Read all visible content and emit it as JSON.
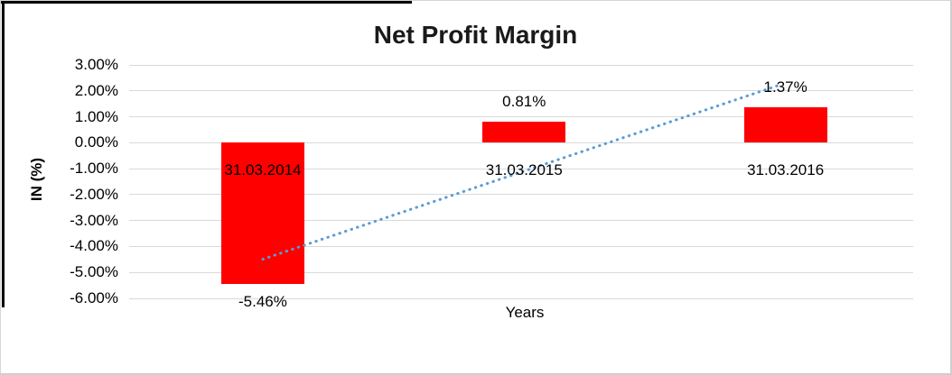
{
  "chart_data": {
    "type": "bar",
    "title": "Net Profit Margin",
    "xlabel": "Years",
    "ylabel": "IN (%)",
    "categories": [
      "31.03.2014",
      "31.03.2015",
      "31.03.2016"
    ],
    "series": [
      {
        "name": "Net Profit Margin",
        "values": [
          -5.46,
          0.81,
          1.37
        ]
      }
    ],
    "data_labels": [
      "-5.46%",
      "0.81%",
      "1.37%"
    ],
    "ytick_labels": [
      "3.00%",
      "2.00%",
      "1.00%",
      "0.00%",
      "-1.00%",
      "-2.00%",
      "-3.00%",
      "-4.00%",
      "-5.00%",
      "-6.00%"
    ],
    "ytick_values": [
      3,
      2,
      1,
      0,
      -1,
      -2,
      -3,
      -4,
      -5,
      -6
    ],
    "ylim": [
      -6,
      3
    ],
    "grid": true,
    "legend": false,
    "trendline": {
      "style": "dotted",
      "color": "#5B9BD5",
      "start": {
        "cat": 0.0,
        "value": -4.49
      },
      "end": {
        "cat": 1.97,
        "value": 2.2
      }
    },
    "colors": {
      "bar": "#FF0000",
      "gridline": "#D9D9D9",
      "trendline": "#5B9BD5",
      "title_text": "#1A1A1A"
    }
  }
}
